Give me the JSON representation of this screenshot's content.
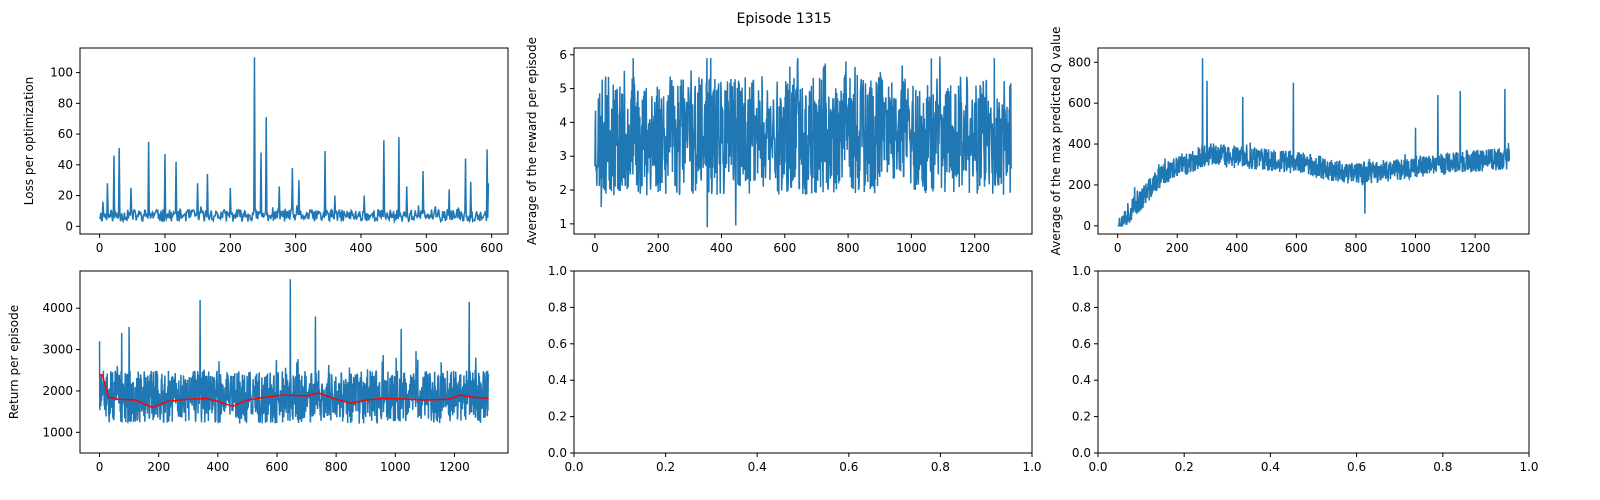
{
  "figure": {
    "suptitle": "Episode 1315"
  },
  "chart_data": [
    {
      "type": "line",
      "ylabel": "Loss per optimization",
      "xlim": [
        -30,
        625
      ],
      "ylim": [
        -5,
        116
      ],
      "x_ticks": [
        0,
        100,
        200,
        300,
        400,
        500,
        600
      ],
      "y_ticks": [
        0,
        20,
        40,
        60,
        80,
        100
      ],
      "series": [
        {
          "color": "#1f77b4",
          "x_start": 0,
          "x_step": 1,
          "n": 596,
          "baseline": 7,
          "noise": 5,
          "min": 2,
          "max": 110,
          "seed": 11,
          "peaks": [
            [
              5,
              16
            ],
            [
              12,
              28
            ],
            [
              22,
              46
            ],
            [
              30,
              51
            ],
            [
              48,
              25
            ],
            [
              75,
              55
            ],
            [
              100,
              47
            ],
            [
              117,
              42
            ],
            [
              150,
              28
            ],
            [
              165,
              34
            ],
            [
              200,
              25
            ],
            [
              237,
              110
            ],
            [
              247,
              48
            ],
            [
              255,
              71
            ],
            [
              275,
              26
            ],
            [
              295,
              38
            ],
            [
              305,
              30
            ],
            [
              345,
              49
            ],
            [
              360,
              20
            ],
            [
              405,
              20
            ],
            [
              435,
              56
            ],
            [
              458,
              58
            ],
            [
              470,
              26
            ],
            [
              495,
              36
            ],
            [
              535,
              24
            ],
            [
              560,
              44
            ],
            [
              568,
              29
            ],
            [
              593,
              50
            ],
            [
              595,
              28
            ]
          ]
        }
      ]
    },
    {
      "type": "line",
      "ylabel": "Average of the reward per episode",
      "xlim": [
        -66,
        1381
      ],
      "ylim": [
        0.7,
        6.2
      ],
      "x_ticks": [
        0,
        200,
        400,
        600,
        800,
        1000,
        1200
      ],
      "y_ticks": [
        1,
        2,
        3,
        4,
        5,
        6
      ],
      "series": [
        {
          "color": "#1f77b4",
          "x_start": 0,
          "x_step": 1,
          "n": 1316,
          "baseline": 3.6,
          "noise": 2.2,
          "min": 0.9,
          "max": 5.9,
          "seed": 23,
          "peaks": [
            [
              355,
              0.9
            ],
            [
              445,
              0.95
            ],
            [
              20,
              1.5
            ],
            [
              1090,
              5.95
            ],
            [
              640,
              5.8
            ]
          ]
        }
      ]
    },
    {
      "type": "line",
      "ylabel": "Average of the max predicted Q value",
      "xlim": [
        -66,
        1381
      ],
      "ylim": [
        -40,
        870
      ],
      "x_ticks": [
        0,
        200,
        400,
        600,
        800,
        1000,
        1200
      ],
      "y_ticks": [
        0,
        200,
        400,
        600,
        800
      ],
      "series": [
        {
          "color": "#1f77b4",
          "x_start": 0,
          "x_step": 1,
          "n": 1316,
          "noise": 70,
          "min": 0,
          "max": 830,
          "seed": 37,
          "trend": [
            [
              0,
              0
            ],
            [
              150,
              250
            ],
            [
              300,
              350
            ],
            [
              450,
              330
            ],
            [
              600,
              310
            ],
            [
              800,
              250
            ],
            [
              1000,
              290
            ],
            [
              1315,
              330
            ]
          ],
          "peaks": [
            [
              285,
              820
            ],
            [
              300,
              710
            ],
            [
              420,
              630
            ],
            [
              590,
              700
            ],
            [
              1075,
              640
            ],
            [
              1150,
              660
            ],
            [
              1300,
              670
            ],
            [
              830,
              60
            ],
            [
              1000,
              480
            ]
          ]
        }
      ]
    },
    {
      "type": "line",
      "ylabel": "Return per episode",
      "xlim": [
        -66,
        1381
      ],
      "ylim": [
        500,
        4900
      ],
      "x_ticks": [
        0,
        200,
        400,
        600,
        800,
        1000,
        1200
      ],
      "y_ticks": [
        1000,
        2000,
        3000,
        4000
      ],
      "series": [
        {
          "color": "#1f77b4",
          "x_start": 0,
          "x_step": 1,
          "n": 1316,
          "baseline": 1850,
          "noise": 800,
          "min": 650,
          "max": 4700,
          "seed": 51,
          "peaks": [
            [
              0,
              3200
            ],
            [
              75,
              3400
            ],
            [
              100,
              3550
            ],
            [
              340,
              4200
            ],
            [
              645,
              4700
            ],
            [
              730,
              3800
            ],
            [
              1250,
              4150
            ],
            [
              1020,
              3500
            ]
          ]
        },
        {
          "color": "#ff0000",
          "x_start": 0,
          "x_step": 1,
          "n": 1316,
          "seed": 0,
          "trend": [
            [
              0,
              2400
            ],
            [
              10,
              2380
            ],
            [
              30,
              1850
            ],
            [
              60,
              1800
            ],
            [
              120,
              1780
            ],
            [
              180,
              1600
            ],
            [
              230,
              1750
            ],
            [
              300,
              1800
            ],
            [
              360,
              1820
            ],
            [
              400,
              1750
            ],
            [
              450,
              1630
            ],
            [
              500,
              1780
            ],
            [
              560,
              1850
            ],
            [
              620,
              1900
            ],
            [
              700,
              1880
            ],
            [
              740,
              1950
            ],
            [
              800,
              1800
            ],
            [
              850,
              1700
            ],
            [
              900,
              1780
            ],
            [
              960,
              1820
            ],
            [
              1050,
              1800
            ],
            [
              1100,
              1780
            ],
            [
              1180,
              1800
            ],
            [
              1220,
              1900
            ],
            [
              1260,
              1850
            ],
            [
              1315,
              1820
            ]
          ]
        }
      ]
    },
    {
      "type": "line",
      "xlim": [
        0,
        1
      ],
      "ylim": [
        0,
        1
      ],
      "x_ticks": [
        0,
        0.2,
        0.4,
        0.6,
        0.8,
        1.0
      ],
      "y_ticks": [
        0,
        0.2,
        0.4,
        0.6,
        0.8,
        1.0
      ],
      "tick_format": "1dp",
      "series": []
    },
    {
      "type": "line",
      "xlim": [
        0,
        1
      ],
      "ylim": [
        0,
        1
      ],
      "x_ticks": [
        0,
        0.2,
        0.4,
        0.6,
        0.8,
        1.0
      ],
      "y_ticks": [
        0,
        0.2,
        0.4,
        0.6,
        0.8,
        1.0
      ],
      "tick_format": "1dp",
      "series": []
    }
  ]
}
